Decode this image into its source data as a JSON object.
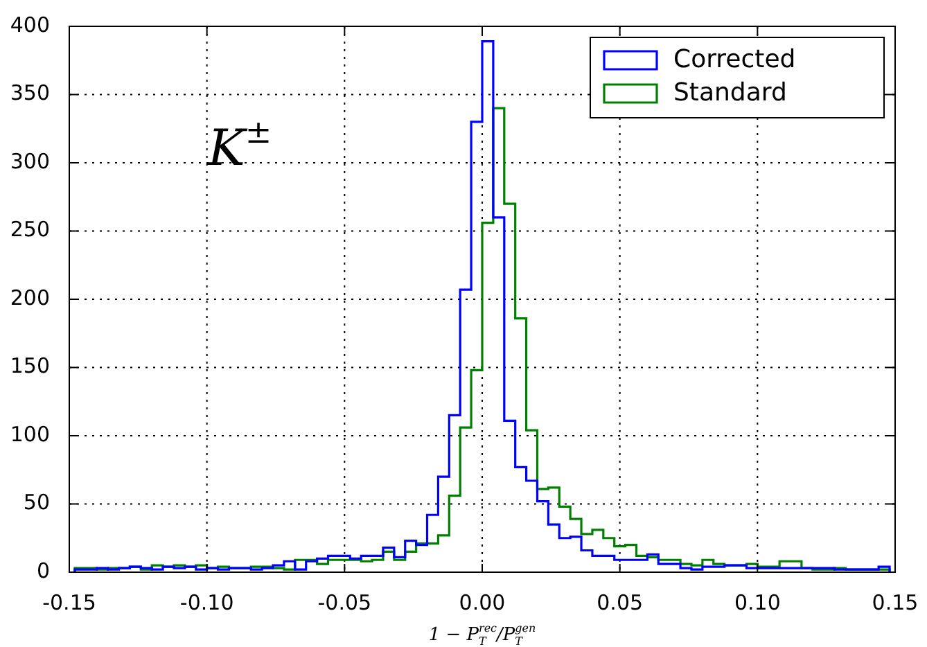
{
  "chart_data": {
    "type": "histogram",
    "xlabel": "1 − P$_{T}$$^{rec}$/P$_{T}$$^{gen}$",
    "annotations": [
      "K$^{±}$"
    ],
    "bins": [
      -0.148,
      -0.144,
      -0.14,
      -0.136,
      -0.132,
      -0.128,
      -0.124,
      -0.12,
      -0.116,
      -0.112,
      -0.108,
      -0.104,
      -0.1,
      -0.096,
      -0.092,
      -0.088,
      -0.084,
      -0.08,
      -0.076,
      -0.072,
      -0.068,
      -0.064,
      -0.06,
      -0.056,
      -0.052,
      -0.048,
      -0.044,
      -0.04,
      -0.036,
      -0.032,
      -0.028,
      -0.024,
      -0.02,
      -0.016,
      -0.012,
      -0.008,
      -0.004,
      0,
      0.004,
      0.008,
      0.012,
      0.016,
      0.02,
      0.024,
      0.028,
      0.032,
      0.036,
      0.04,
      0.044,
      0.048,
      0.052,
      0.056,
      0.06,
      0.064,
      0.068,
      0.072,
      0.076,
      0.08,
      0.084,
      0.088,
      0.092,
      0.096,
      0.1,
      0.104,
      0.108,
      0.112,
      0.116,
      0.12,
      0.124,
      0.128,
      0.132,
      0.136,
      0.14,
      0.144,
      0.148
    ],
    "series": [
      {
        "name": "Corrected",
        "color": "#0000ff",
        "values": [
          2,
          2,
          3,
          2,
          3,
          4,
          3,
          2,
          4,
          3,
          4,
          2,
          3,
          2,
          3,
          3,
          2,
          3,
          5,
          8,
          2,
          8,
          10,
          12,
          12,
          10,
          12,
          12,
          18,
          11,
          23,
          20,
          42,
          70,
          115,
          207,
          330,
          389,
          260,
          111,
          77,
          67,
          52,
          35,
          25,
          26,
          16,
          12,
          12,
          9,
          9,
          9,
          13,
          6,
          6,
          3,
          2,
          4,
          4,
          5,
          5,
          3,
          3,
          3,
          3,
          3,
          3,
          3,
          3,
          2,
          2,
          2,
          2,
          4
        ]
      },
      {
        "name": "Standard",
        "color": "#008000",
        "values": [
          3,
          3,
          2,
          3,
          3,
          4,
          2,
          5,
          4,
          5,
          4,
          5,
          3,
          4,
          3,
          3,
          4,
          4,
          3,
          2,
          9,
          9,
          6,
          9,
          9,
          9,
          8,
          9,
          15,
          9,
          15,
          21,
          21,
          27,
          56,
          106,
          148,
          256,
          340,
          270,
          186,
          104,
          61,
          62,
          48,
          39,
          28,
          31,
          25,
          19,
          20,
          12,
          11,
          9,
          9,
          6,
          5,
          9,
          6,
          5,
          5,
          6,
          4,
          4,
          8,
          8,
          3,
          2,
          2,
          3,
          2,
          2,
          2,
          2
        ]
      }
    ],
    "xlim": [
      -0.15,
      0.15
    ],
    "ylim": [
      0,
      400
    ],
    "xticks": [
      {
        "value": -0.15,
        "label": "-0.15"
      },
      {
        "value": -0.1,
        "label": "-0.10"
      },
      {
        "value": -0.05,
        "label": "-0.05"
      },
      {
        "value": 0,
        "label": "0.00"
      },
      {
        "value": 0.05,
        "label": "0.05"
      },
      {
        "value": 0.1,
        "label": "0.10"
      },
      {
        "value": 0.15,
        "label": "0.15"
      }
    ],
    "yticks": [
      0,
      50,
      100,
      150,
      200,
      250,
      300,
      350,
      400
    ],
    "grid": true,
    "legend": "top right"
  }
}
